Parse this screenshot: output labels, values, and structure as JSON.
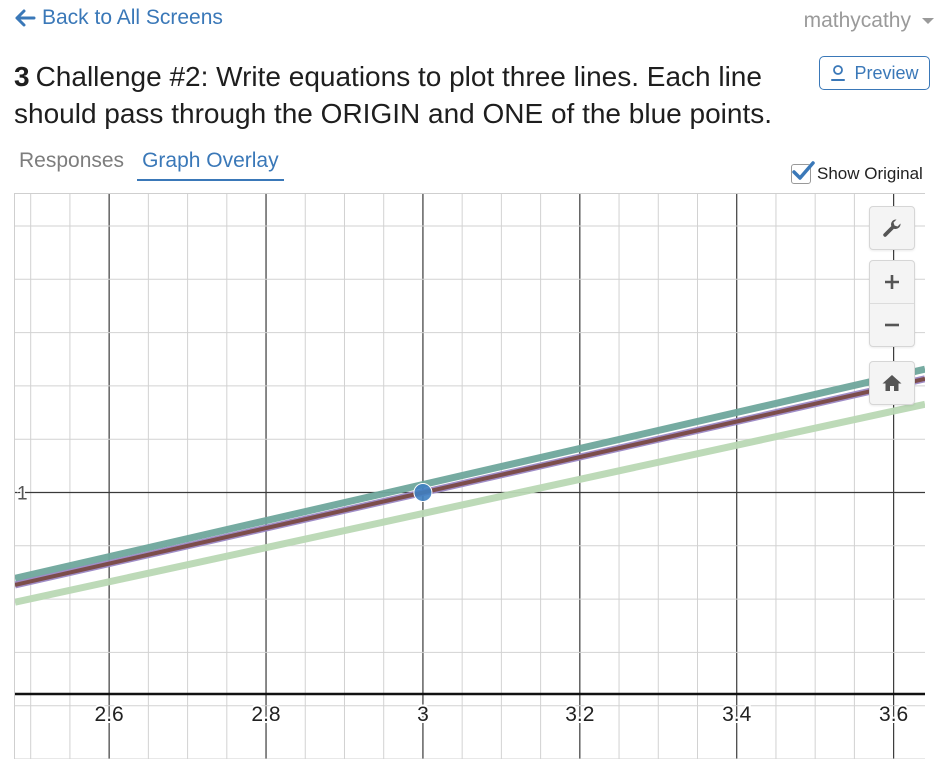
{
  "header": {
    "back_label": "Back to All Screens",
    "user_name": "mathycathy"
  },
  "screen": {
    "number": "3",
    "title": "Challenge #2: Write equations to plot three lines. Each line should pass through the ORIGIN and ONE of the blue points.",
    "preview_label": "Preview"
  },
  "tabs": [
    {
      "label": "Responses",
      "active": false
    },
    {
      "label": "Graph Overlay",
      "active": true
    }
  ],
  "show_original": {
    "label": "Show Original",
    "checked": true
  },
  "graph_controls": {
    "icons": [
      "wrench-icon",
      "zoom-in-icon",
      "zoom-out-icon",
      "home-icon"
    ]
  },
  "colors": {
    "accent": "#3a78b8",
    "point": "#3f7fc1",
    "line_teal": "#6fa79c",
    "line_brown": "#7a4a44",
    "line_purple": "#9b87c4",
    "line_green": "#b9d8b4"
  },
  "chart_data": {
    "type": "line",
    "xlim": [
      2.48,
      3.64
    ],
    "ylim": [
      0.5,
      1.56
    ],
    "x_ticks": [
      2.6,
      2.8,
      3,
      3.2,
      3.4,
      3.6
    ],
    "x_tick_labels": [
      "2.6",
      "2.8",
      "3",
      "3.2",
      "3.4",
      "3.6"
    ],
    "y_ticks": [
      1
    ],
    "y_tick_labels": [
      "1"
    ],
    "grid": true,
    "points": [
      {
        "x": 3,
        "y": 1
      }
    ],
    "series": [
      {
        "slope": 0.3383,
        "color": "#6fa79c",
        "width": 7
      },
      {
        "slope": 0.3333,
        "color": "#9b87c4",
        "width": 7
      },
      {
        "slope": 0.3333,
        "color": "#7a4a44",
        "width": 4
      },
      {
        "slope": 0.3202,
        "color": "#b9d8b4",
        "width": 7
      }
    ]
  }
}
